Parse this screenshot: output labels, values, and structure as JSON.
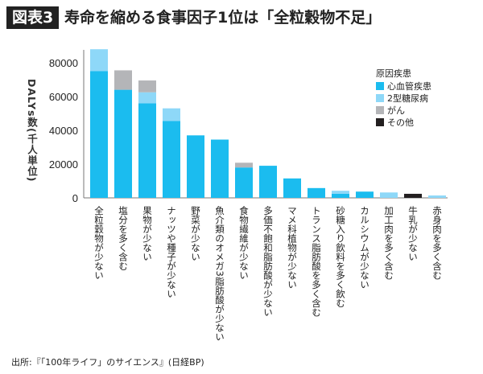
{
  "header": {
    "figure_label": "図表3",
    "title": "寿命を縮める食事因子1位は「全粒穀物不足」"
  },
  "source": "出所:『「100年ライフ」のサイエンス』(日経BP)",
  "chart_data": {
    "type": "bar",
    "stacked": true,
    "title": "寿命を縮める食事因子1位は「全粒穀物不足」",
    "ylabel": "DALYs数(千人単位)",
    "xlabel": "",
    "ylim": [
      0,
      90000
    ],
    "yticks": [
      0,
      20000,
      40000,
      60000,
      80000
    ],
    "grid": false,
    "legend": {
      "title": "原因疾患",
      "placement": "top-right"
    },
    "categories": [
      "全粒穀物が少ない",
      "塩分を多く含む",
      "果物が少ない",
      "ナッツや種子が少ない",
      "野菜が少ない",
      "魚介類のオメガ3脂肪酸が少ない",
      "食物繊維が少ない",
      "多価不飽和脂肪酸が少ない",
      "マメ科植物が少ない",
      "トランス脂肪酸を多く含む",
      "砂糖入り飲料を多く飲む",
      "カルシウムが少ない",
      "加工肉を多く含む",
      "牛乳が少ない",
      "赤身肉を多く含む"
    ],
    "series": [
      {
        "name": "心血管疾患",
        "color": "#1bbcef",
        "values": [
          75000,
          64000,
          56000,
          45500,
          37000,
          34500,
          18000,
          19000,
          11500,
          5800,
          2400,
          3700,
          0,
          0,
          0
        ]
      },
      {
        "name": "2型糖尿病",
        "color": "#8ed8f8",
        "values": [
          13000,
          0,
          6500,
          7500,
          0,
          0,
          0,
          0,
          0,
          0,
          1800,
          0,
          3200,
          0,
          1400
        ]
      },
      {
        "name": "がん",
        "color": "#b4b5b8",
        "values": [
          0,
          11500,
          7000,
          0,
          0,
          0,
          2800,
          0,
          0,
          0,
          0,
          0,
          0,
          0,
          0
        ]
      },
      {
        "name": "その他",
        "color": "#231f20",
        "values": [
          0,
          0,
          0,
          0,
          0,
          0,
          0,
          0,
          0,
          0,
          0,
          0,
          0,
          2400,
          0
        ]
      }
    ]
  }
}
